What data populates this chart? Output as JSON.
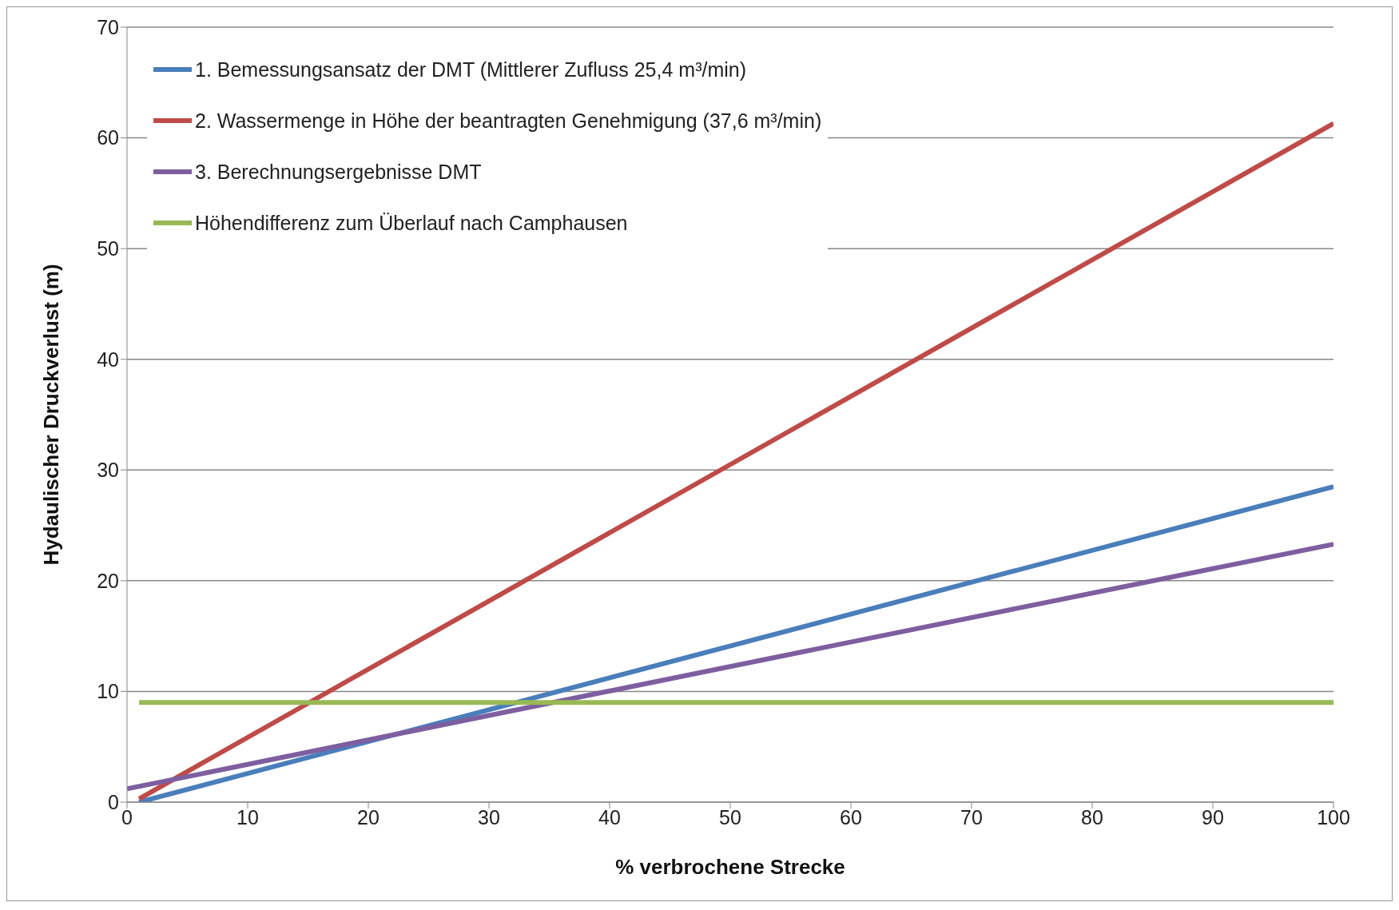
{
  "chart_data": {
    "type": "line",
    "xlabel": "% verbrochene Strecke",
    "ylabel": "Hydaulischer Druckverlust (m)",
    "xlim": [
      0,
      100
    ],
    "xticks": [
      0,
      10,
      20,
      30,
      40,
      50,
      60,
      70,
      80,
      90,
      100
    ],
    "ylim": [
      0,
      70
    ],
    "yticks": [
      0,
      10,
      20,
      30,
      40,
      50,
      60,
      70
    ],
    "grid": "y",
    "legend": "top left",
    "marker": "none",
    "line_style": "solid",
    "series": [
      {
        "name": "1. Bemessungsansatz der DMT (Mittlerer Zufluss 25,4 m³/min)",
        "color": "#4a7ebb",
        "x": [
          1,
          100
        ],
        "values": [
          0,
          28.5
        ]
      },
      {
        "name": "2. Wassermenge in Höhe der beantragten Genehmigung (37,6 m³/min)",
        "color": "#be4b48",
        "x": [
          1,
          100
        ],
        "values": [
          0.3,
          61.3
        ]
      },
      {
        "name": "3. Berechnungsergebnisse DMT",
        "color": "#7d5fa0",
        "x": [
          0,
          100
        ],
        "values": [
          1.2,
          23.3
        ]
      },
      {
        "name": "Höhendifferenz zum Überlauf nach Camphausen",
        "color": "#98b954",
        "x": [
          1,
          100
        ],
        "values": [
          9,
          9
        ]
      }
    ]
  }
}
